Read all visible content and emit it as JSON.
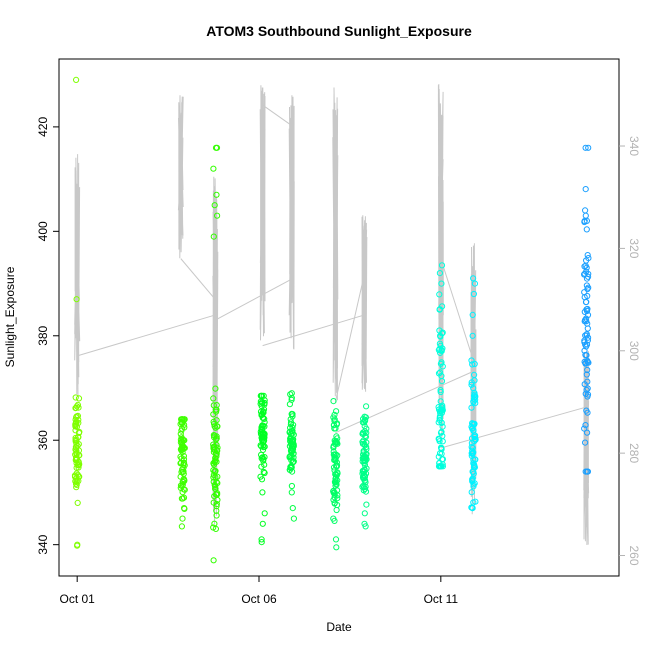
{
  "chart_data": {
    "type": "scatter",
    "title": "ATOM3 Southbound Sunlight_Exposure",
    "xlabel": "Date",
    "ylabel": "Sunlight_Exposure",
    "x_tick_labels": [
      {
        "label": "Oct 01",
        "day": 1
      },
      {
        "label": "Oct 06",
        "day": 6
      },
      {
        "label": "Oct 11",
        "day": 11
      }
    ],
    "xlim_days": [
      0.5,
      15.9
    ],
    "ylim_left": [
      334,
      433
    ],
    "yticks_left": [
      340,
      360,
      380,
      400,
      420
    ],
    "ylim_right": [
      256,
      357
    ],
    "yticks_right": [
      260,
      280,
      300,
      320,
      340
    ],
    "right_axis_color": "#b3b3b3",
    "line_color": "#c8c8c8",
    "clusters": [
      {
        "day": 1.0,
        "color": "#7fff00",
        "min": 339.8,
        "max": 429.0,
        "center": 358.5,
        "spread": 4,
        "outliers": [
          387,
          368,
          351,
          348,
          340
        ]
      },
      {
        "day": 3.9,
        "color": "#3fff00",
        "min": 343.5,
        "max": 364.0,
        "center": 358.0,
        "spread": 5,
        "outliers": [
          354,
          352,
          349,
          347,
          345
        ]
      },
      {
        "day": 4.8,
        "color": "#33ff00",
        "min": 337.0,
        "max": 416.0,
        "center": 356.0,
        "spread": 6,
        "outliers": [
          416,
          412,
          407,
          405,
          403,
          399,
          368
        ]
      },
      {
        "day": 6.1,
        "color": "#00ff22",
        "min": 340.5,
        "max": 368.5,
        "center": 360.5,
        "spread": 4,
        "outliers": [
          350,
          346,
          344,
          341
        ]
      },
      {
        "day": 6.9,
        "color": "#00ff44",
        "min": 345.0,
        "max": 369.0,
        "center": 359.0,
        "spread": 4,
        "outliers": [
          365,
          350,
          347
        ]
      },
      {
        "day": 8.1,
        "color": "#00ff66",
        "min": 339.5,
        "max": 367.5,
        "center": 356.0,
        "spread": 5,
        "outliers": [
          348,
          345,
          341
        ]
      },
      {
        "day": 8.9,
        "color": "#00ff88",
        "min": 343.5,
        "max": 366.5,
        "center": 356.5,
        "spread": 4,
        "outliers": [
          346,
          344
        ]
      },
      {
        "day": 11.0,
        "color": "#00ffdd",
        "min": 355.0,
        "max": 393.5,
        "center": 368.0,
        "spread": 9,
        "outliers": [
          392,
          390,
          385,
          380
        ]
      },
      {
        "day": 11.9,
        "color": "#00f2ff",
        "min": 347.0,
        "max": 391.0,
        "center": 361.0,
        "spread": 7,
        "outliers": [
          390,
          388,
          384,
          380
        ]
      },
      {
        "day": 15.0,
        "color": "#1a9fff",
        "min": 354.0,
        "max": 416.0,
        "center": 381.0,
        "spread": 12,
        "outliers": [
          416,
          404,
          403,
          402,
          354
        ]
      }
    ],
    "grey_line": {
      "axis": "right",
      "spikes": [
        {
          "day": 1.0,
          "min": 291,
          "max": 340
        },
        {
          "day": 3.85,
          "min": 318,
          "max": 350
        },
        {
          "day": 4.8,
          "min": 266,
          "max": 335
        },
        {
          "day": 6.1,
          "min": 301,
          "max": 352
        },
        {
          "day": 6.9,
          "min": 300,
          "max": 350
        },
        {
          "day": 8.1,
          "min": 290,
          "max": 352
        },
        {
          "day": 8.9,
          "min": 292,
          "max": 327
        },
        {
          "day": 11.0,
          "min": 282,
          "max": 353
        },
        {
          "day": 11.9,
          "min": 268,
          "max": 322
        },
        {
          "day": 15.0,
          "min": 262,
          "max": 301
        }
      ],
      "connectors": [
        [
          1.0,
          299,
          4.8,
          307
        ],
        [
          3.85,
          318,
          4.8,
          310
        ],
        [
          4.8,
          306,
          6.9,
          314
        ],
        [
          6.1,
          348,
          6.9,
          344
        ],
        [
          6.1,
          301,
          8.9,
          307
        ],
        [
          8.1,
          290,
          8.9,
          315
        ],
        [
          8.1,
          284,
          11.9,
          296
        ],
        [
          11.0,
          318,
          11.9,
          298
        ],
        [
          11.0,
          281,
          15.0,
          289
        ]
      ]
    }
  }
}
